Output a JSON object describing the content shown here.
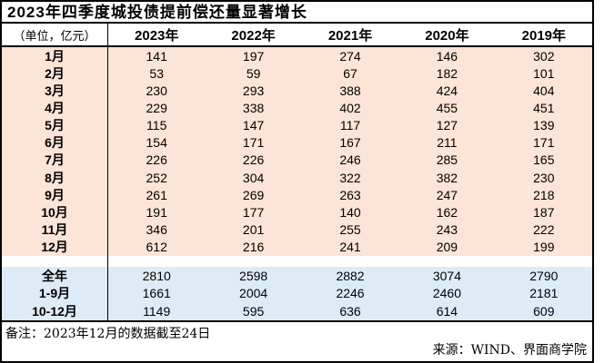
{
  "title": "2023年四季度城投债提前偿还量显著增长",
  "unit_label": "（单位，亿元）",
  "footer": {
    "note": "备注：2023年12月的数据截至24日",
    "source": "来源：WIND、界面商学院"
  },
  "colors": {
    "monthly_row_bg": "#FCE4D6",
    "summary_row_bg": "#DDEBF7",
    "border": "#000000"
  },
  "chart_data": {
    "type": "table",
    "title": "2023年四季度城投债提前偿还量显著增长",
    "unit": "亿元",
    "columns": [
      "2023年",
      "2022年",
      "2021年",
      "2020年",
      "2019年"
    ],
    "monthly_rows": [
      {
        "label": "1月",
        "values": [
          141,
          197,
          274,
          146,
          302
        ]
      },
      {
        "label": "2月",
        "values": [
          53,
          59,
          67,
          182,
          101
        ]
      },
      {
        "label": "3月",
        "values": [
          230,
          293,
          388,
          424,
          404
        ]
      },
      {
        "label": "4月",
        "values": [
          229,
          338,
          402,
          455,
          451
        ]
      },
      {
        "label": "5月",
        "values": [
          115,
          147,
          117,
          127,
          139
        ]
      },
      {
        "label": "6月",
        "values": [
          154,
          171,
          167,
          211,
          171
        ]
      },
      {
        "label": "7月",
        "values": [
          226,
          226,
          246,
          285,
          165
        ]
      },
      {
        "label": "8月",
        "values": [
          252,
          304,
          322,
          382,
          230
        ]
      },
      {
        "label": "9月",
        "values": [
          261,
          269,
          263,
          247,
          218
        ]
      },
      {
        "label": "10月",
        "values": [
          191,
          177,
          140,
          162,
          187
        ]
      },
      {
        "label": "11月",
        "values": [
          346,
          201,
          255,
          243,
          222
        ]
      },
      {
        "label": "12月",
        "values": [
          612,
          216,
          241,
          209,
          199
        ]
      }
    ],
    "summary_rows": [
      {
        "label": "全年",
        "values": [
          2810,
          2598,
          2882,
          3074,
          2790
        ]
      },
      {
        "label": "1-9月",
        "values": [
          1661,
          2004,
          2246,
          2460,
          2181
        ]
      },
      {
        "label": "10-12月",
        "values": [
          1149,
          595,
          636,
          614,
          609
        ]
      }
    ]
  }
}
